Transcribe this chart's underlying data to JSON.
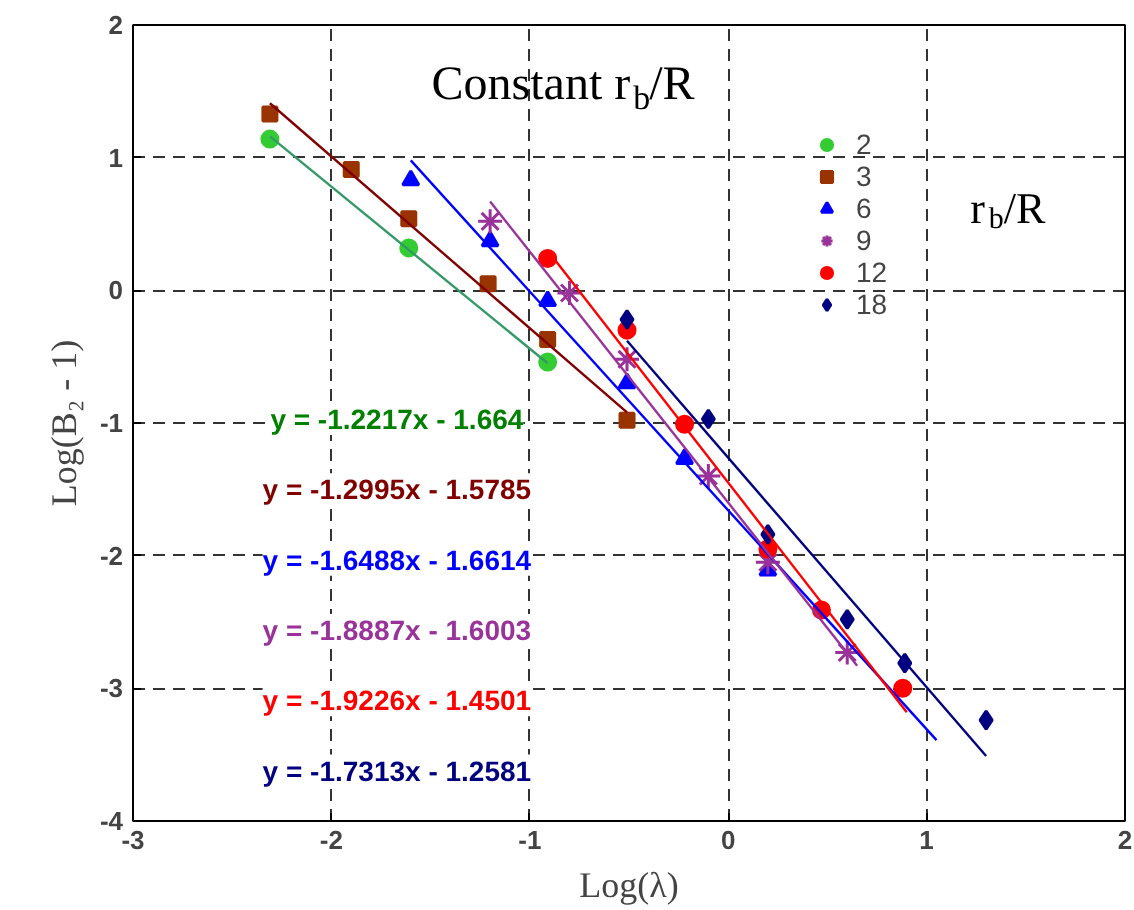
{
  "chart_data": {
    "type": "scatter",
    "title": "Constant r$_{b}$/R",
    "xlabel": "Log(λ)",
    "ylabel": "Log(B₂ - 1)",
    "legend_title": "r$_{b}$/R",
    "xlim": [
      -3,
      2
    ],
    "ylim": [
      -4,
      2
    ],
    "xticks": [
      -3,
      -2,
      -1,
      0,
      1,
      2
    ],
    "yticks": [
      -4,
      -3,
      -2,
      -1,
      0,
      1,
      2
    ],
    "grid": true,
    "legend": "top right",
    "annotations": [
      "y = -1.2217x - 1.664",
      "y = -1.2995x - 1.5785",
      "y = -1.6488x - 1.6614",
      "y = -1.8887x - 1.6003",
      "y = -1.9226x - 1.4501",
      "y = -1.7313x - 1.2581"
    ],
    "series": [
      {
        "name": "2",
        "color": "#33cc33",
        "marker": "circle",
        "x": [
          -2.31,
          -1.61,
          -0.91
        ],
        "values": [
          1.14,
          0.32,
          -0.54
        ]
      },
      {
        "name": "3",
        "color": "#993300",
        "marker": "square",
        "x": [
          -2.31,
          -1.9,
          -1.61,
          -1.21,
          -0.91,
          -0.51
        ],
        "values": [
          1.33,
          0.91,
          0.54,
          0.05,
          -0.37,
          -0.98
        ]
      },
      {
        "name": "6",
        "color": "#0000ff",
        "marker": "triangle",
        "x": [
          -1.6,
          -1.2,
          -0.91,
          -0.51,
          -0.22,
          0.2
        ],
        "values": [
          0.83,
          0.37,
          -0.08,
          -0.7,
          -1.27,
          -2.11
        ]
      },
      {
        "name": "9",
        "color": "#993399",
        "marker": "cross",
        "x": [
          -1.2,
          -0.8,
          -0.51,
          -0.1,
          0.2,
          0.6
        ],
        "values": [
          0.52,
          -0.02,
          -0.52,
          -1.4,
          -2.05,
          -2.73
        ]
      },
      {
        "name": "12",
        "color": "#ff0000",
        "marker": "circle",
        "x": [
          -0.91,
          -0.51,
          -0.22,
          0.2,
          0.47,
          0.88
        ],
        "values": [
          0.24,
          -0.3,
          -1.01,
          -1.95,
          -2.41,
          -3.0
        ]
      },
      {
        "name": "18",
        "color": "#000080",
        "marker": "diamond",
        "x": [
          -0.51,
          -0.1,
          0.2,
          0.6,
          0.89,
          1.3
        ],
        "values": [
          -0.22,
          -0.97,
          -1.84,
          -2.48,
          -2.81,
          -3.24
        ]
      },
      {
        "type": "line",
        "color": "#339966",
        "x": [
          -2.31,
          -0.91
        ],
        "values": [
          1.16,
          -0.55
        ]
      },
      {
        "type": "line",
        "color": "#800000",
        "x": [
          -2.31,
          -0.51
        ],
        "values": [
          1.41,
          -0.92
        ]
      },
      {
        "type": "line",
        "color": "#0000ff",
        "x": [
          -1.6,
          1.05
        ],
        "values": [
          0.98,
          -3.39
        ]
      },
      {
        "type": "line",
        "color": "#993399",
        "x": [
          -1.2,
          0.65
        ],
        "values": [
          0.67,
          -2.83
        ]
      },
      {
        "type": "line",
        "color": "#ff0000",
        "x": [
          -0.91,
          0.9
        ],
        "values": [
          0.3,
          -3.18
        ]
      },
      {
        "type": "line",
        "color": "#000080",
        "x": [
          -0.51,
          1.3
        ],
        "values": [
          -0.38,
          -3.51
        ]
      }
    ]
  }
}
